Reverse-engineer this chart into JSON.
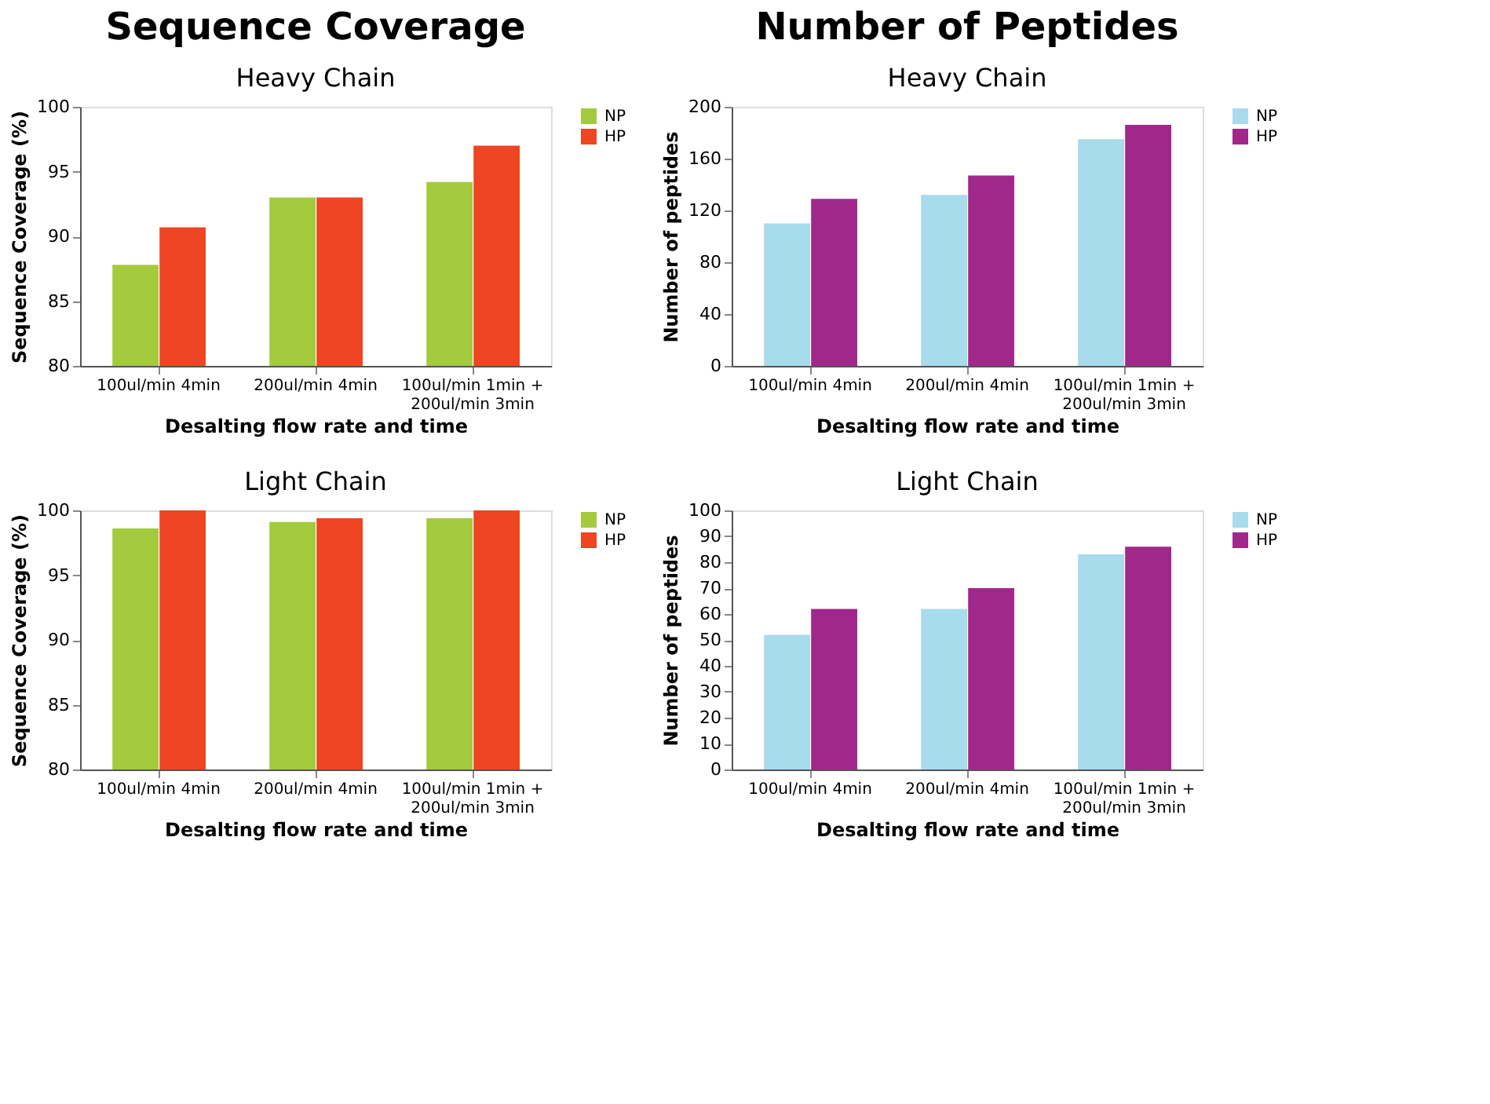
{
  "chart_data": [
    {
      "type": "bar",
      "title": "Sequence Coverage",
      "subtitle": "Heavy Chain",
      "xlabel": "Desalting flow rate and time",
      "ylabel": "Sequence Coverage (%)",
      "categories": [
        "100ul/min 4min",
        "200ul/min 4min",
        "100ul/min 1min +\n200ul/min 3min"
      ],
      "series": [
        {
          "name": "NP",
          "color": "#a4cb3e",
          "values": [
            87.8,
            93.0,
            94.2
          ]
        },
        {
          "name": "HP",
          "color": "#ef4523",
          "values": [
            90.7,
            93.0,
            97.0
          ]
        }
      ],
      "ylim": [
        80,
        100
      ],
      "yticks": [
        80,
        85,
        90,
        95,
        100
      ],
      "grid": false,
      "legend": "right"
    },
    {
      "type": "bar",
      "title": "Number of Peptides",
      "subtitle": "Heavy Chain",
      "xlabel": "Desalting flow rate and time",
      "ylabel": "Number of peptides",
      "categories": [
        "100ul/min 4min",
        "200ul/min 4min",
        "100ul/min 1min +\n200ul/min 3min"
      ],
      "series": [
        {
          "name": "NP",
          "color": "#a8dbec",
          "values": [
            110,
            132,
            175
          ]
        },
        {
          "name": "HP",
          "color": "#a1288b",
          "values": [
            129,
            147,
            186
          ]
        }
      ],
      "ylim": [
        0,
        200
      ],
      "yticks": [
        0,
        40,
        80,
        120,
        160,
        200
      ],
      "grid": false,
      "legend": "right"
    },
    {
      "type": "bar",
      "title": "Light Chain",
      "xlabel": "Desalting flow rate and time",
      "ylabel": "Sequence Coverage (%)",
      "categories": [
        "100ul/min 4min",
        "200ul/min 4min",
        "100ul/min 1min +\n200ul/min 3min"
      ],
      "series": [
        {
          "name": "NP",
          "color": "#a4cb3e",
          "values": [
            98.6,
            99.1,
            99.4
          ]
        },
        {
          "name": "HP",
          "color": "#ef4523",
          "values": [
            100,
            99.4,
            100
          ]
        }
      ],
      "ylim": [
        80,
        100
      ],
      "yticks": [
        80,
        85,
        90,
        95,
        100
      ],
      "grid": false,
      "legend": "right"
    },
    {
      "type": "bar",
      "title": "Light Chain",
      "xlabel": "Desalting flow rate and time",
      "ylabel": "Number of peptides",
      "categories": [
        "100ul/min 4min",
        "200ul/min 4min",
        "100ul/min 1min +\n200ul/min 3min"
      ],
      "series": [
        {
          "name": "NP",
          "color": "#a8dbec",
          "values": [
            52,
            62,
            83
          ]
        },
        {
          "name": "HP",
          "color": "#a1288b",
          "values": [
            62,
            70,
            86
          ]
        }
      ],
      "ylim": [
        0,
        100
      ],
      "yticks": [
        0,
        10,
        20,
        30,
        40,
        50,
        60,
        70,
        80,
        90,
        100
      ],
      "grid": false,
      "legend": "right"
    }
  ]
}
